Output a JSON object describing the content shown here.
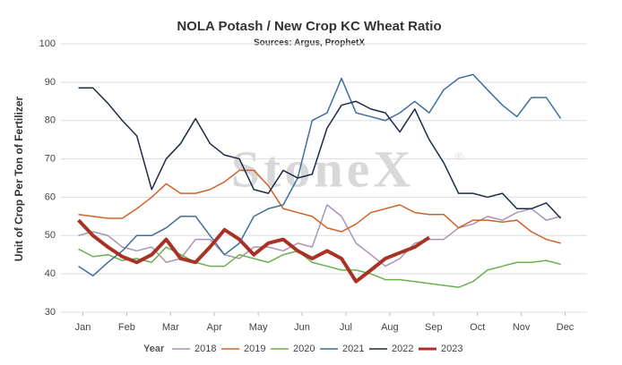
{
  "chart_data": {
    "type": "line",
    "title": "NOLA Potash / New Crop KC Wheat Ratio",
    "subtitle": "Sources: Argus, ProphetX",
    "y_label": "Unit of Crop Per Ton of Fertilizer",
    "legend_title": "Year",
    "watermark": "StoneX",
    "watermark_mark": "®",
    "legend": "bottom",
    "grid": true,
    "xlim": [
      0.5,
      12.5
    ],
    "xticks": [
      {
        "value": 1,
        "label": "Jan"
      },
      {
        "value": 2,
        "label": "Feb"
      },
      {
        "value": 3,
        "label": "Mar"
      },
      {
        "value": 4,
        "label": "Apr"
      },
      {
        "value": 5,
        "label": "May"
      },
      {
        "value": 6,
        "label": "Jun"
      },
      {
        "value": 7,
        "label": "Jul"
      },
      {
        "value": 8,
        "label": "Aug"
      },
      {
        "value": 9,
        "label": "Sep"
      },
      {
        "value": 10,
        "label": "Oct"
      },
      {
        "value": 11,
        "label": "Nov"
      },
      {
        "value": 12,
        "label": "Dec"
      }
    ],
    "ylim": [
      30,
      100
    ],
    "yticks": [
      30,
      40,
      50,
      60,
      70,
      80,
      90,
      100
    ],
    "x": [
      0.9,
      1.23,
      1.57,
      1.9,
      2.23,
      2.57,
      2.9,
      3.23,
      3.57,
      3.9,
      4.23,
      4.57,
      4.9,
      5.23,
      5.57,
      5.9,
      6.23,
      6.57,
      6.9,
      7.23,
      7.57,
      7.9,
      8.23,
      8.57,
      8.9,
      9.23,
      9.57,
      9.9,
      10.23,
      10.57,
      10.9,
      11.23,
      11.57,
      11.9
    ],
    "series": [
      {
        "name": "2018",
        "color": "#a994b8",
        "width": 1.5,
        "values": [
          50,
          51,
          50,
          47,
          46,
          47,
          43,
          44,
          49,
          49,
          45,
          44,
          47,
          47,
          46,
          48,
          47,
          58,
          55,
          48,
          45,
          42,
          44,
          48,
          49,
          49,
          52,
          53,
          55,
          54,
          56,
          57,
          54,
          55
        ]
      },
      {
        "name": "2019",
        "color": "#d0622a",
        "width": 1.5,
        "values": [
          55.5,
          55,
          54.5,
          54.5,
          57,
          60,
          63.5,
          61,
          61,
          62,
          64,
          67,
          67,
          63,
          57,
          56,
          55,
          52,
          51,
          53,
          56,
          57,
          58,
          56,
          55.5,
          55.5,
          52,
          54,
          54,
          53.5,
          54,
          51,
          49,
          48
        ]
      },
      {
        "name": "2020",
        "color": "#6ab04c",
        "width": 1.5,
        "values": [
          46.5,
          44.5,
          45,
          43.5,
          44,
          43,
          47,
          45,
          43,
          42,
          42,
          45,
          44,
          43,
          45,
          46,
          43,
          42,
          41,
          41,
          40,
          38.5,
          38.5,
          38,
          37.5,
          37,
          36.5,
          38,
          41,
          42,
          43,
          43,
          43.5,
          42.5
        ]
      },
      {
        "name": "2021",
        "color": "#3f6e9e",
        "width": 1.5,
        "values": [
          42,
          39.5,
          43,
          46,
          50,
          50,
          52,
          55,
          55,
          50,
          45,
          48,
          55,
          57,
          58,
          65,
          80,
          82,
          91,
          82,
          81,
          80,
          82,
          85,
          82,
          88,
          91,
          92,
          88,
          84,
          81,
          86,
          86,
          80.5
        ]
      },
      {
        "name": "2022",
        "color": "#1c2b44",
        "width": 1.5,
        "values": [
          88.5,
          88.5,
          84.5,
          80,
          76,
          62,
          70,
          74,
          80.5,
          74,
          71,
          70,
          62,
          61,
          67,
          65,
          66,
          78,
          84,
          85,
          83,
          82,
          77,
          83,
          75,
          69,
          61,
          61,
          60,
          61,
          57,
          57,
          58.5,
          54.5
        ]
      },
      {
        "name": "2023",
        "color": "#a93226",
        "width": 4,
        "values": [
          54,
          50,
          47,
          44.5,
          43,
          45,
          49,
          44,
          43,
          47,
          51.5,
          49,
          45,
          48,
          49,
          46,
          44,
          46,
          44,
          38,
          41,
          44,
          45.5,
          47,
          49.5,
          null,
          null,
          null,
          null,
          null,
          null,
          null,
          null,
          null
        ]
      }
    ]
  }
}
